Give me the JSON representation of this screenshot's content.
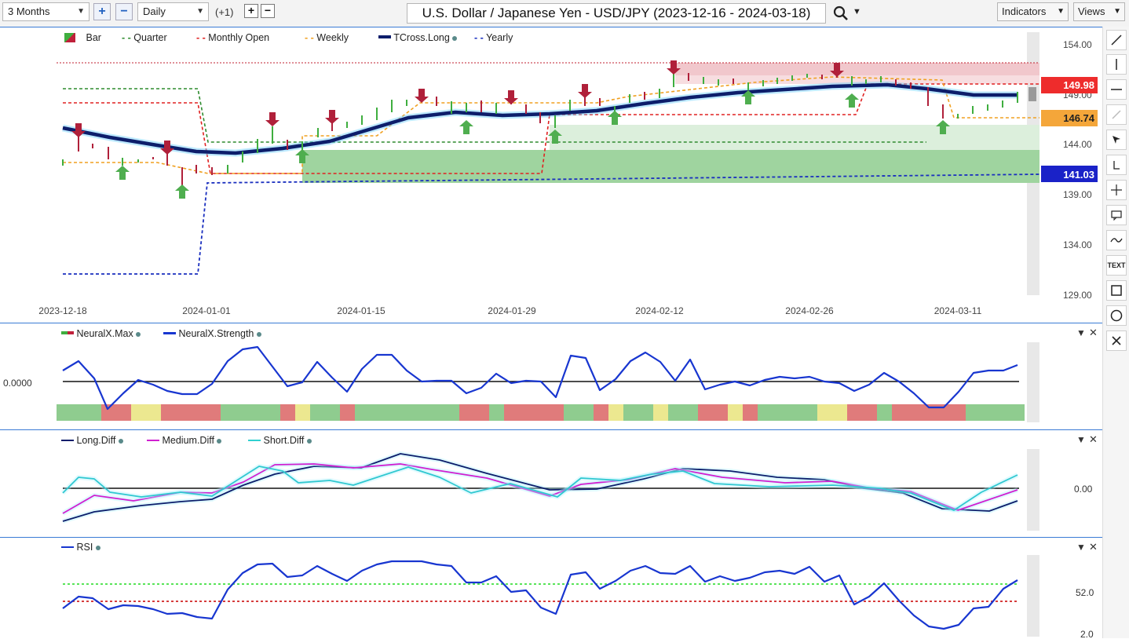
{
  "toolbar": {
    "range_select": "3 Months",
    "interval_select": "Daily",
    "offset": "(+1)",
    "title": "U.S. Dollar / Japanese Yen - USD/JPY (2023-12-16 - 2024-03-18)",
    "indicators": "Indicators",
    "views": "Views",
    "plus": "+",
    "minus": "−"
  },
  "main_chart": {
    "legend": [
      "Bar",
      "Quarter",
      "Monthly Open",
      "Weekly",
      "TCross.Long",
      "Yearly"
    ],
    "y_ticks": [
      "154.00",
      "149.00",
      "144.00",
      "139.00",
      "134.00",
      "129.00"
    ],
    "x_ticks": [
      "2023-12-18",
      "2024-01-01",
      "2024-01-15",
      "2024-01-29",
      "2024-02-12",
      "2024-02-26",
      "2024-03-11"
    ],
    "price_labels": {
      "red": "149.98",
      "orange": "146.74",
      "blue": "141.03"
    },
    "colors": {
      "up": "#3fae3f",
      "down": "#b0203a",
      "tcross": "#0d1e6b",
      "yearly": "#1a2fbf",
      "monthly": "#e02020",
      "quarter": "#2e8b2e",
      "weekly": "#f0a020"
    }
  },
  "neural_panel": {
    "legend": [
      "NeuralX.Max",
      "NeuralX.Strength"
    ],
    "y_label": "0.0000"
  },
  "diff_panel": {
    "legend": [
      "Long.Diff",
      "Medium.Diff",
      "Short.Diff"
    ],
    "y_label": "0.00"
  },
  "rsi_panel": {
    "legend": [
      "RSI"
    ],
    "y_labels": [
      "52.0",
      "2.0"
    ]
  },
  "panel_controls": {
    "down": "▼",
    "close": "✕"
  },
  "side_tools": [
    "line-tool",
    "vertical-line-tool",
    "horizontal-line-tool",
    "ray-tool",
    "pointer-tool",
    "measure-tool",
    "crosshair-tool",
    "comment-tool",
    "curve-tool",
    "text-tool",
    "rectangle-tool",
    "circle-tool",
    "close-tool"
  ],
  "side_text_tool": "TEXT"
}
